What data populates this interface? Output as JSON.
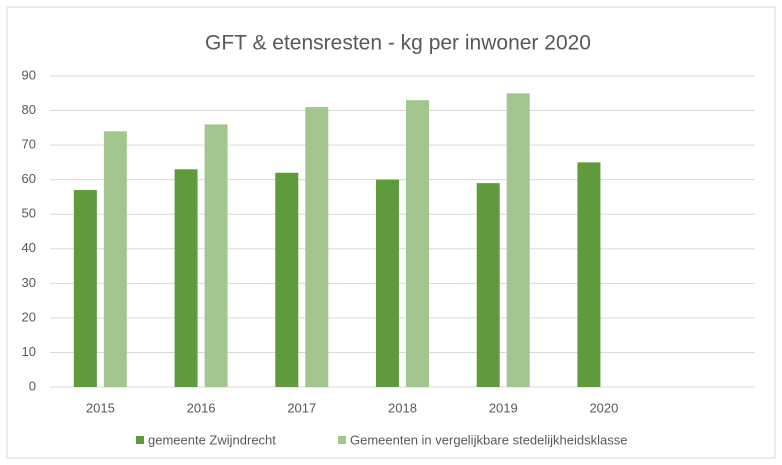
{
  "chart_data": {
    "type": "bar",
    "title": "GFT & etensresten - kg per inwoner 2020",
    "categories": [
      "2015",
      "2016",
      "2017",
      "2018",
      "2019",
      "2020",
      null
    ],
    "series": [
      {
        "name": "gemeente Zwijndrecht",
        "color": "#5f9a3c",
        "values": [
          57,
          63,
          62,
          60,
          59,
          65,
          null
        ]
      },
      {
        "name": "Gemeenten in vergelijkbare stedelijkheidsklasse",
        "color": "#a3c68e",
        "values": [
          74,
          76,
          81,
          83,
          85,
          null,
          null
        ]
      }
    ],
    "ylim": [
      0,
      90
    ],
    "yticks": [
      0,
      10,
      20,
      30,
      40,
      50,
      60,
      70,
      80,
      90
    ],
    "grid": true,
    "legend": "bottom"
  }
}
